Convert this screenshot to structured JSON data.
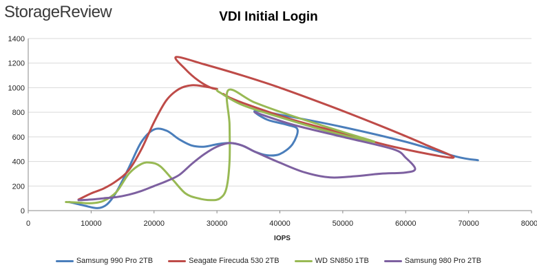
{
  "brand": "StorageReview",
  "chart_data": {
    "type": "line",
    "title": "VDI Initial Login",
    "xlabel": "IOPS",
    "ylabel": "",
    "xlim": [
      0,
      80000
    ],
    "ylim": [
      0,
      1400
    ],
    "xticks": [
      0,
      10000,
      20000,
      30000,
      40000,
      50000,
      60000,
      70000,
      80000
    ],
    "yticks": [
      0,
      200,
      400,
      600,
      800,
      1000,
      1200,
      1400
    ],
    "grid": true,
    "legend_position": "bottom",
    "series": [
      {
        "name": "Samsung 990 Pro 2TB",
        "color": "#4a7ebb",
        "points": [
          [
            6500,
            70
          ],
          [
            9000,
            40
          ],
          [
            11000,
            20
          ],
          [
            12500,
            50
          ],
          [
            14000,
            150
          ],
          [
            16000,
            350
          ],
          [
            18000,
            560
          ],
          [
            20000,
            660
          ],
          [
            22000,
            650
          ],
          [
            24000,
            580
          ],
          [
            26000,
            530
          ],
          [
            28000,
            520
          ],
          [
            30000,
            540
          ],
          [
            32000,
            550
          ],
          [
            34000,
            530
          ],
          [
            36000,
            480
          ],
          [
            38000,
            450
          ],
          [
            40000,
            460
          ],
          [
            42000,
            540
          ],
          [
            42800,
            660
          ],
          [
            41000,
            700
          ],
          [
            38000,
            740
          ],
          [
            36000,
            810
          ],
          [
            40000,
            780
          ],
          [
            50000,
            680
          ],
          [
            60000,
            560
          ],
          [
            68000,
            440
          ],
          [
            71500,
            410
          ]
        ]
      },
      {
        "name": "Seagate Firecuda 530 2TB",
        "color": "#be4b48",
        "points": [
          [
            8000,
            90
          ],
          [
            10000,
            140
          ],
          [
            12000,
            180
          ],
          [
            14000,
            240
          ],
          [
            16000,
            330
          ],
          [
            18000,
            500
          ],
          [
            20000,
            720
          ],
          [
            22000,
            900
          ],
          [
            24000,
            990
          ],
          [
            26000,
            1020
          ],
          [
            28000,
            1010
          ],
          [
            30000,
            990
          ],
          [
            29000,
            1000
          ],
          [
            27000,
            1060
          ],
          [
            25000,
            1150
          ],
          [
            23500,
            1250
          ],
          [
            28000,
            1190
          ],
          [
            34000,
            1100
          ],
          [
            40000,
            1000
          ],
          [
            48000,
            850
          ],
          [
            56000,
            690
          ],
          [
            63000,
            540
          ],
          [
            67500,
            430
          ],
          [
            58000,
            520
          ],
          [
            50000,
            630
          ],
          [
            42000,
            740
          ],
          [
            35000,
            860
          ],
          [
            32000,
            920
          ],
          [
            31000,
            950
          ]
        ]
      },
      {
        "name": "WD SN850 1TB",
        "color": "#98b954",
        "points": [
          [
            6000,
            70
          ],
          [
            8000,
            65
          ],
          [
            10000,
            60
          ],
          [
            12000,
            80
          ],
          [
            14000,
            150
          ],
          [
            16000,
            300
          ],
          [
            18000,
            380
          ],
          [
            19500,
            390
          ],
          [
            21000,
            360
          ],
          [
            23000,
            250
          ],
          [
            25000,
            140
          ],
          [
            27000,
            100
          ],
          [
            29000,
            85
          ],
          [
            30500,
            100
          ],
          [
            31500,
            180
          ],
          [
            32000,
            400
          ],
          [
            32000,
            700
          ],
          [
            31800,
            980
          ],
          [
            36000,
            880
          ],
          [
            42000,
            770
          ],
          [
            50000,
            640
          ],
          [
            55000,
            560
          ],
          [
            48000,
            640
          ],
          [
            40000,
            760
          ],
          [
            34000,
            860
          ],
          [
            30500,
            960
          ],
          [
            30000,
            980
          ]
        ]
      },
      {
        "name": "Samsung 980 Pro 2TB",
        "color": "#7d60a0",
        "points": [
          [
            8000,
            85
          ],
          [
            10000,
            90
          ],
          [
            12000,
            100
          ],
          [
            14000,
            110
          ],
          [
            16000,
            130
          ],
          [
            18000,
            160
          ],
          [
            20000,
            200
          ],
          [
            22000,
            240
          ],
          [
            24000,
            290
          ],
          [
            26000,
            380
          ],
          [
            28000,
            460
          ],
          [
            30000,
            520
          ],
          [
            32000,
            550
          ],
          [
            34000,
            530
          ],
          [
            36000,
            480
          ],
          [
            40000,
            390
          ],
          [
            44000,
            310
          ],
          [
            48000,
            270
          ],
          [
            52000,
            280
          ],
          [
            56000,
            300
          ],
          [
            60000,
            310
          ],
          [
            61500,
            340
          ],
          [
            60000,
            430
          ],
          [
            58000,
            500
          ],
          [
            50000,
            600
          ],
          [
            42000,
            700
          ],
          [
            36000,
            800
          ]
        ]
      }
    ]
  }
}
